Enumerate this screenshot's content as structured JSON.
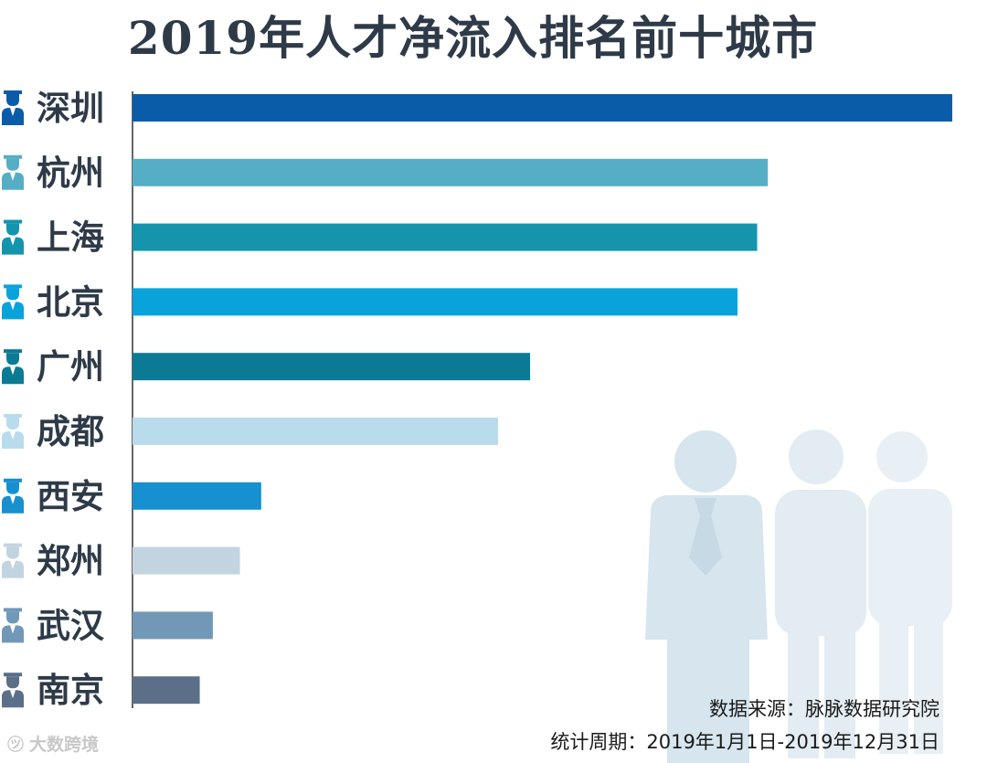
{
  "chart_data": {
    "type": "bar",
    "orientation": "horizontal",
    "title": "2019年人才净流入排名前十城市",
    "categories": [
      "深圳",
      "杭州",
      "上海",
      "北京",
      "广州",
      "成都",
      "西安",
      "郑州",
      "武汉",
      "南京"
    ],
    "values": [
      100,
      77.5,
      76.2,
      73.8,
      48.5,
      44.6,
      15.7,
      13.1,
      9.8,
      8.2
    ],
    "bar_colors": [
      "#0a5ca8",
      "#55aec6",
      "#1495ad",
      "#08a3db",
      "#0b7b95",
      "#b9dcec",
      "#1690cf",
      "#c3d4e1",
      "#7298b8",
      "#5b6f89"
    ],
    "icon_colors": [
      "#0a5ca8",
      "#55aec6",
      "#1495ad",
      "#08a3db",
      "#0b7b95",
      "#b9dcec",
      "#1690cf",
      "#c3d4e1",
      "#7298b8",
      "#5b6f89"
    ],
    "xlim": [
      0,
      100
    ],
    "grid": false,
    "legend": "none"
  },
  "source": "数据来源：脉脉数据研究院",
  "period": "统计周期：2019年1月1日-2019年12月31日",
  "watermark": "大数跨境",
  "colors": {
    "title": "#2e3a48",
    "label": "#2e3a48",
    "axis": "#333333",
    "people_silhouette": "#dde9f0"
  }
}
